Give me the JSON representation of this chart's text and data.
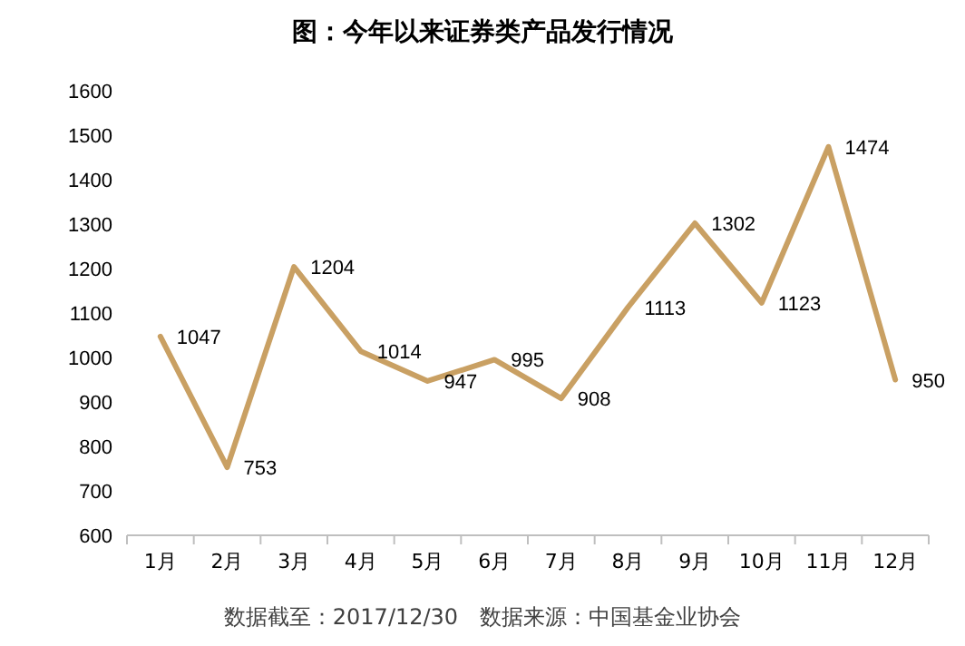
{
  "chart_data": {
    "type": "line",
    "title": "图：今年以来证券类产品发行情况",
    "categories": [
      "1月",
      "2月",
      "3月",
      "4月",
      "5月",
      "6月",
      "7月",
      "8月",
      "9月",
      "10月",
      "11月",
      "12月"
    ],
    "values": [
      1047,
      753,
      1204,
      1014,
      947,
      995,
      908,
      1113,
      1302,
      1123,
      1474,
      950
    ],
    "color": "#c9a063",
    "data_labels": true,
    "ylim": [
      600,
      1600
    ],
    "yticks": [
      600,
      700,
      800,
      900,
      1000,
      1100,
      1200,
      1300,
      1400,
      1500,
      1600
    ],
    "annotations": [
      "数据截至：2017/12/30　数据来源：中国基金业协会"
    ]
  }
}
